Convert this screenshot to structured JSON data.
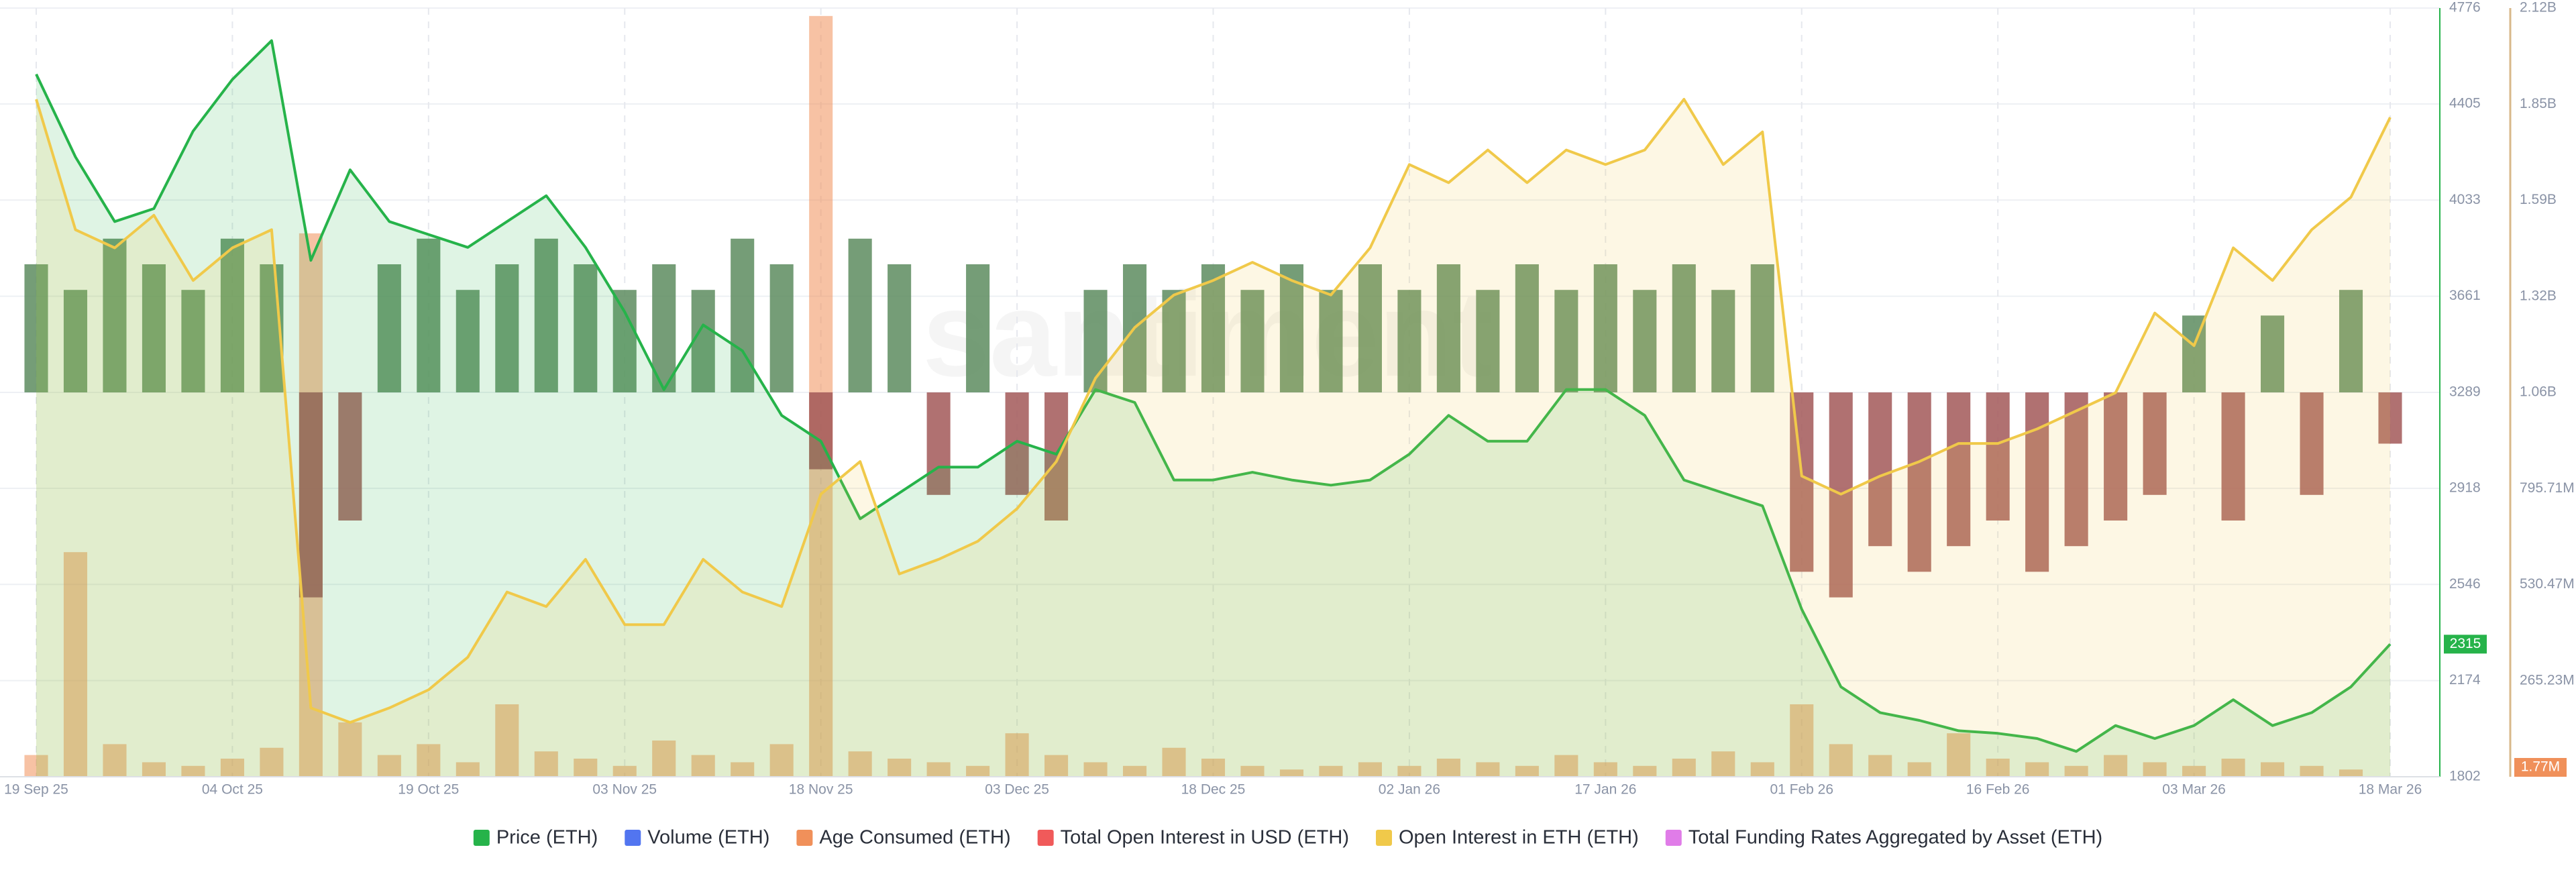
{
  "chart_data": {
    "type": "line",
    "watermark": "santiment",
    "x": [
      "19 Sep 25",
      "22 Sep 25",
      "25 Sep 25",
      "28 Sep 25",
      "01 Oct 25",
      "04 Oct 25",
      "07 Oct 25",
      "10 Oct 25",
      "13 Oct 25",
      "16 Oct 25",
      "19 Oct 25",
      "22 Oct 25",
      "25 Oct 25",
      "28 Oct 25",
      "31 Oct 25",
      "03 Nov 25",
      "06 Nov 25",
      "09 Nov 25",
      "12 Nov 25",
      "15 Nov 25",
      "18 Nov 25",
      "21 Nov 25",
      "24 Nov 25",
      "27 Nov 25",
      "30 Nov 25",
      "03 Dec 25",
      "06 Dec 25",
      "09 Dec 25",
      "12 Dec 25",
      "15 Dec 25",
      "18 Dec 25",
      "21 Dec 25",
      "24 Dec 25",
      "27 Dec 25",
      "30 Dec 25",
      "02 Jan 26",
      "05 Jan 26",
      "08 Jan 26",
      "11 Jan 26",
      "14 Jan 26",
      "17 Jan 26",
      "20 Jan 26",
      "23 Jan 26",
      "26 Jan 26",
      "29 Jan 26",
      "01 Feb 26",
      "04 Feb 26",
      "07 Feb 26",
      "10 Feb 26",
      "13 Feb 26",
      "16 Feb 26",
      "19 Feb 26",
      "22 Feb 26",
      "25 Feb 26",
      "28 Feb 26",
      "03 Mar 26",
      "06 Mar 26",
      "09 Mar 26",
      "12 Mar 26",
      "15 Mar 26",
      "18 Mar 26"
    ],
    "xticks": [
      "19 Sep 25",
      "04 Oct 25",
      "19 Oct 25",
      "03 Nov 25",
      "18 Nov 25",
      "03 Dec 25",
      "18 Dec 25",
      "02 Jan 26",
      "17 Jan 26",
      "01 Feb 26",
      "16 Feb 26",
      "03 Mar 26",
      "18 Mar 26"
    ],
    "ylim": [
      1802,
      4776
    ],
    "yticks": [
      1802,
      2174,
      2546,
      2918,
      3289,
      3661,
      4033,
      4405,
      4776
    ],
    "y2lim": [
      0,
      2121880000
    ],
    "y2ticks": [
      {
        "value": 265235000,
        "label": "265.23M"
      },
      {
        "value": 530470000,
        "label": "530.47M"
      },
      {
        "value": 795705000,
        "label": "795.71M"
      },
      {
        "value": 1060940000,
        "label": "1.06B"
      },
      {
        "value": 1326175000,
        "label": "1.32B"
      },
      {
        "value": 1591410000,
        "label": "1.59B"
      },
      {
        "value": 1856645000,
        "label": "1.85B"
      },
      {
        "value": 2121880000,
        "label": "2.12B"
      }
    ],
    "y3lim": [
      -0.015,
      0.015
    ],
    "grid": true,
    "legend": "bottom",
    "series": [
      {
        "name": "Price (ETH)",
        "color": "#26b34a",
        "fill": true,
        "values": [
          4520,
          4200,
          3950,
          4000,
          4300,
          4500,
          4650,
          3800,
          4150,
          3950,
          3900,
          3850,
          3950,
          4050,
          3850,
          3600,
          3300,
          3550,
          3450,
          3200,
          3100,
          2800,
          2900,
          3000,
          3000,
          3100,
          3050,
          3300,
          3250,
          2950,
          2950,
          2980,
          2950,
          2930,
          2950,
          3050,
          3200,
          3100,
          3100,
          3300,
          3300,
          3200,
          2950,
          2900,
          2850,
          2450,
          2150,
          2050,
          2020,
          1980,
          1970,
          1950,
          1900,
          2000,
          1950,
          2000,
          2100,
          2000,
          2050,
          2150,
          2315
        ]
      },
      {
        "name": "Volume (ETH)",
        "color": "#5275f0"
      },
      {
        "name": "Age Consumed (ETH)",
        "color": "#f0905a",
        "axis": "y2",
        "values": [
          60000000,
          620000000,
          90000000,
          40000000,
          30000000,
          50000000,
          80000000,
          1500000000,
          150000000,
          60000000,
          90000000,
          40000000,
          200000000,
          70000000,
          50000000,
          30000000,
          100000000,
          60000000,
          40000000,
          90000000,
          2100000000,
          70000000,
          50000000,
          40000000,
          30000000,
          120000000,
          60000000,
          40000000,
          30000000,
          80000000,
          50000000,
          30000000,
          20000000,
          30000000,
          40000000,
          30000000,
          50000000,
          40000000,
          30000000,
          60000000,
          40000000,
          30000000,
          50000000,
          70000000,
          40000000,
          200000000,
          90000000,
          60000000,
          40000000,
          120000000,
          50000000,
          40000000,
          30000000,
          60000000,
          40000000,
          30000000,
          50000000,
          40000000,
          30000000,
          20000000,
          1770000
        ],
        "value_labels": [
          null,
          null,
          null,
          null,
          null,
          null,
          null,
          null,
          null,
          null,
          null,
          null,
          null,
          null,
          null,
          null,
          null,
          null,
          null,
          null,
          null,
          null,
          null,
          null,
          null,
          null,
          null,
          null,
          null,
          null,
          null,
          null,
          null,
          null,
          null,
          null,
          null,
          null,
          null,
          null,
          null,
          null,
          null,
          null,
          null,
          null,
          null,
          null,
          null,
          null,
          null,
          null,
          null,
          null,
          null,
          null,
          null,
          null,
          null,
          null,
          "1.77M"
        ]
      },
      {
        "name": "Total Open Interest in USD (ETH)",
        "color": "#f05a5a"
      },
      {
        "name": "Open Interest in ETH (ETH)",
        "color": "#f0c94a",
        "axis": "y2",
        "fill": true,
        "values": [
          1870000000,
          1510000000,
          1460000000,
          1550000000,
          1370000000,
          1460000000,
          1510000000,
          190000000,
          150000000,
          190000000,
          240000000,
          330000000,
          510000000,
          470000000,
          600000000,
          420000000,
          420000000,
          600000000,
          510000000,
          470000000,
          780000000,
          870000000,
          560000000,
          600000000,
          650000000,
          740000000,
          870000000,
          1100000000,
          1240000000,
          1330000000,
          1370000000,
          1420000000,
          1370000000,
          1330000000,
          1460000000,
          1690000000,
          1640000000,
          1730000000,
          1640000000,
          1730000000,
          1690000000,
          1730000000,
          1870000000,
          1690000000,
          1780000000,
          830000000,
          780000000,
          830000000,
          870000000,
          920000000,
          920000000,
          960000000,
          1010000000,
          1060000000,
          1280000000,
          1190000000,
          1460000000,
          1370000000,
          1510000000,
          1600000000,
          1820000000
        ]
      },
      {
        "name": "Total Funding Rates Aggregated by Asset (ETH)",
        "color": "#e07ce8",
        "axis": "y3",
        "positive_color": "#5d8c5f",
        "negative_color": "#a25858",
        "values": [
          0.005,
          0.004,
          0.006,
          0.005,
          0.004,
          0.006,
          0.005,
          -0.008,
          -0.005,
          0.005,
          0.006,
          0.004,
          0.005,
          0.006,
          0.005,
          0.004,
          0.005,
          0.004,
          0.006,
          0.005,
          -0.003,
          0.006,
          0.005,
          -0.004,
          0.005,
          -0.004,
          -0.005,
          0.004,
          0.005,
          0.004,
          0.005,
          0.004,
          0.005,
          0.004,
          0.005,
          0.004,
          0.005,
          0.004,
          0.005,
          0.004,
          0.005,
          0.004,
          0.005,
          0.004,
          0.005,
          -0.007,
          -0.008,
          -0.006,
          -0.007,
          -0.006,
          -0.005,
          -0.007,
          -0.006,
          -0.005,
          -0.004,
          0.003,
          -0.005,
          0.003,
          -0.004,
          0.004,
          -0.002
        ]
      }
    ]
  }
}
